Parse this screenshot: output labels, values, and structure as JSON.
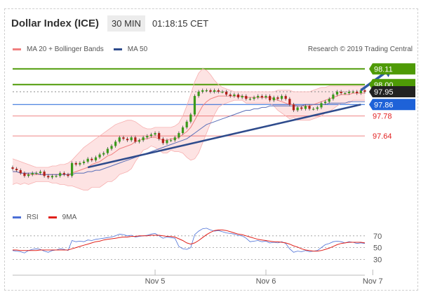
{
  "header": {
    "title": "Dollar Index (ICE)",
    "interval": "30 MIN",
    "time": "01:18:15 CET"
  },
  "legend": {
    "ma20": "MA 20 + Bollinger Bands",
    "ma50": "MA 50",
    "source": "Research © 2019 Trading Central",
    "colors": {
      "ma20": "#f08080",
      "ma50": "#2e4b8c"
    }
  },
  "rsi_legend": {
    "rsi": "RSI",
    "ma9": "9MA",
    "colors": {
      "rsi": "#4b6fd6",
      "ma9": "#e0201a"
    }
  },
  "chart_data": [
    {
      "type": "line",
      "subtype": "candlestick",
      "title": "Dollar Index (ICE)",
      "ylim": [
        97.16,
        98.2
      ],
      "x_ticks": [
        {
          "label": "Nov 5",
          "t": 36
        },
        {
          "label": "Nov 6",
          "t": 64
        },
        {
          "label": "Nov 7",
          "t": 91
        }
      ],
      "levels": [
        {
          "value": 98.11,
          "label": "98.11",
          "color": "#4e9a06",
          "kind": "resistance"
        },
        {
          "value": 98.0,
          "label": "98.00",
          "color": "#4e9a06",
          "kind": "resistance"
        },
        {
          "value": 97.95,
          "label": "97.95",
          "color": "#222222",
          "kind": "last"
        },
        {
          "value": 97.86,
          "label": "97.86",
          "color": "#1e62d8",
          "kind": "pivot"
        },
        {
          "value": 97.78,
          "label": "97.78",
          "color": "#e22222",
          "kind": "support"
        },
        {
          "value": 97.64,
          "label": "97.64",
          "color": "#e22222",
          "kind": "support"
        }
      ],
      "close": [
        97.41,
        97.4,
        97.38,
        97.36,
        97.37,
        97.38,
        97.38,
        97.39,
        97.36,
        97.35,
        97.36,
        97.36,
        97.38,
        97.37,
        97.36,
        97.45,
        97.44,
        97.45,
        97.46,
        97.48,
        97.47,
        97.49,
        97.51,
        97.52,
        97.55,
        97.57,
        97.6,
        97.63,
        97.62,
        97.61,
        97.63,
        97.6,
        97.61,
        97.63,
        97.64,
        97.65,
        97.66,
        97.62,
        97.59,
        97.61,
        97.61,
        97.63,
        97.66,
        97.7,
        97.74,
        97.79,
        97.92,
        97.95,
        97.96,
        97.96,
        97.95,
        97.96,
        97.95,
        97.95,
        97.93,
        97.92,
        97.93,
        97.91,
        97.92,
        97.9,
        97.9,
        97.91,
        97.92,
        97.91,
        97.92,
        97.89,
        97.91,
        97.9,
        97.92,
        97.9,
        97.86,
        97.82,
        97.84,
        97.83,
        97.85,
        97.83,
        97.83,
        97.84,
        97.87,
        97.88,
        97.9,
        97.93,
        97.95,
        97.94,
        97.94,
        97.95,
        97.95,
        97.94,
        97.96,
        97.95
      ],
      "ma20": [
        97.39,
        97.39,
        97.38,
        97.38,
        97.37,
        97.37,
        97.37,
        97.37,
        97.37,
        97.37,
        97.37,
        97.37,
        97.37,
        97.37,
        97.37,
        97.38,
        97.39,
        97.4,
        97.41,
        97.42,
        97.44,
        97.45,
        97.46,
        97.48,
        97.5,
        97.51,
        97.53,
        97.55,
        97.56,
        97.57,
        97.58,
        97.6,
        97.61,
        97.62,
        97.62,
        97.63,
        97.63,
        97.62,
        97.61,
        97.61,
        97.62,
        97.62,
        97.63,
        97.65,
        97.67,
        97.7,
        97.75,
        97.8,
        97.85,
        97.88,
        97.9,
        97.91,
        97.92,
        97.92,
        97.92,
        97.92,
        97.92,
        97.92,
        97.92,
        97.91,
        97.91,
        97.91,
        97.91,
        97.91,
        97.91,
        97.91,
        97.9,
        97.89,
        97.88,
        97.87,
        97.86,
        97.86,
        97.85,
        97.85,
        97.85,
        97.85,
        97.86,
        97.87,
        97.88,
        97.89,
        97.9,
        97.91,
        97.92,
        97.93,
        97.93,
        97.93,
        97.94,
        97.94,
        97.94,
        97.94
      ],
      "ma50": [
        97.39,
        97.39,
        97.38,
        97.38,
        97.38,
        97.38,
        97.38,
        97.37,
        97.37,
        97.37,
        97.37,
        97.37,
        97.37,
        97.37,
        97.37,
        97.37,
        97.38,
        97.38,
        97.38,
        97.39,
        97.39,
        97.4,
        97.4,
        97.41,
        97.42,
        97.43,
        97.44,
        97.45,
        97.46,
        97.47,
        97.48,
        97.49,
        97.5,
        97.51,
        97.52,
        97.53,
        97.54,
        97.55,
        97.56,
        97.57,
        97.58,
        97.59,
        97.6,
        97.61,
        97.62,
        97.64,
        97.66,
        97.68,
        97.7,
        97.72,
        97.73,
        97.74,
        97.75,
        97.76,
        97.77,
        97.78,
        97.79,
        97.8,
        97.81,
        97.82,
        97.82,
        97.83,
        97.83,
        97.84,
        97.84,
        97.85,
        97.85,
        97.85,
        97.85,
        97.85,
        97.85,
        97.85,
        97.85,
        97.85,
        97.86,
        97.86,
        97.86,
        97.86,
        97.86,
        97.86,
        97.87,
        97.87,
        97.87,
        97.87,
        97.87,
        97.88,
        97.88,
        97.88,
        97.88,
        97.88
      ],
      "bb_upper": [
        97.48,
        97.47,
        97.46,
        97.45,
        97.44,
        97.43,
        97.42,
        97.42,
        97.42,
        97.42,
        97.43,
        97.43,
        97.44,
        97.44,
        97.45,
        97.47,
        97.5,
        97.53,
        97.56,
        97.58,
        97.6,
        97.62,
        97.64,
        97.66,
        97.68,
        97.7,
        97.72,
        97.73,
        97.74,
        97.75,
        97.75,
        97.74,
        97.72,
        97.7,
        97.69,
        97.69,
        97.7,
        97.7,
        97.7,
        97.7,
        97.7,
        97.71,
        97.73,
        97.78,
        97.85,
        97.93,
        98.02,
        98.08,
        98.11,
        98.1,
        98.07,
        98.03,
        98.0,
        97.98,
        97.97,
        97.96,
        97.95,
        97.95,
        97.95,
        97.95,
        97.95,
        97.95,
        97.95,
        97.95,
        97.95,
        97.95,
        97.95,
        97.96,
        97.96,
        97.96,
        97.96,
        97.95,
        97.95,
        97.95,
        97.95,
        97.95,
        97.96,
        97.97,
        97.98,
        97.98,
        97.99,
        97.99,
        97.99,
        97.99,
        97.99,
        97.99,
        97.99,
        97.99,
        97.99,
        97.99
      ],
      "bb_lower": [
        97.3,
        97.31,
        97.3,
        97.31,
        97.3,
        97.31,
        97.32,
        97.32,
        97.32,
        97.32,
        97.31,
        97.31,
        97.3,
        97.3,
        97.29,
        97.29,
        97.28,
        97.27,
        97.26,
        97.26,
        97.28,
        97.28,
        97.28,
        97.3,
        97.32,
        97.32,
        97.34,
        97.37,
        97.38,
        97.39,
        97.41,
        97.46,
        97.5,
        97.54,
        97.55,
        97.57,
        97.56,
        97.54,
        97.52,
        97.52,
        97.54,
        97.53,
        97.53,
        97.52,
        97.49,
        97.47,
        97.48,
        97.52,
        97.59,
        97.66,
        97.73,
        97.79,
        97.84,
        97.86,
        97.87,
        97.88,
        97.89,
        97.89,
        97.89,
        97.87,
        97.87,
        97.87,
        97.87,
        97.87,
        97.87,
        97.87,
        97.85,
        97.82,
        97.8,
        97.78,
        97.76,
        97.77,
        97.75,
        97.75,
        97.75,
        97.75,
        97.76,
        97.77,
        97.78,
        97.8,
        97.81,
        97.83,
        97.85,
        97.87,
        97.87,
        97.87,
        97.89,
        97.89,
        97.89,
        97.89
      ],
      "trendline": {
        "from": [
          19,
          97.42
        ],
        "to": [
          88,
          97.86
        ]
      },
      "projection": {
        "from": [
          88,
          97.95
        ],
        "to": [
          95,
          98.11
        ]
      }
    },
    {
      "type": "line",
      "title": "RSI",
      "ylim": [
        15,
        90
      ],
      "y_ticks": [
        70,
        50,
        30
      ],
      "rsi": [
        45,
        44,
        43,
        41,
        45,
        47,
        48,
        47,
        44,
        42,
        45,
        46,
        48,
        47,
        45,
        62,
        60,
        61,
        60,
        63,
        62,
        64,
        65,
        66,
        67,
        68,
        70,
        73,
        72,
        70,
        71,
        68,
        69,
        70,
        71,
        73,
        74,
        70,
        66,
        68,
        67,
        66,
        52,
        48,
        47,
        50,
        72,
        78,
        82,
        83,
        80,
        78,
        79,
        77,
        75,
        74,
        73,
        71,
        70,
        66,
        60,
        61,
        62,
        60,
        61,
        58,
        59,
        58,
        60,
        57,
        48,
        42,
        44,
        43,
        45,
        43,
        44,
        45,
        50,
        55,
        57,
        60,
        61,
        60,
        58,
        60,
        59,
        57,
        58,
        57
      ],
      "ma9": [
        46,
        46,
        45,
        45,
        45,
        45,
        45,
        46,
        46,
        46,
        46,
        46,
        46,
        46,
        46,
        48,
        50,
        52,
        54,
        56,
        58,
        60,
        61,
        63,
        64,
        65,
        66,
        67,
        68,
        68,
        69,
        69,
        70,
        70,
        70,
        71,
        71,
        71,
        70,
        69,
        69,
        68,
        65,
        62,
        58,
        56,
        58,
        62,
        67,
        72,
        76,
        79,
        80,
        80,
        79,
        77,
        75,
        73,
        72,
        70,
        68,
        66,
        64,
        63,
        62,
        61,
        60,
        60,
        59,
        58,
        56,
        53,
        51,
        48,
        46,
        45,
        44,
        44,
        45,
        47,
        49,
        52,
        55,
        57,
        58,
        59,
        59,
        59,
        59,
        58
      ]
    }
  ]
}
